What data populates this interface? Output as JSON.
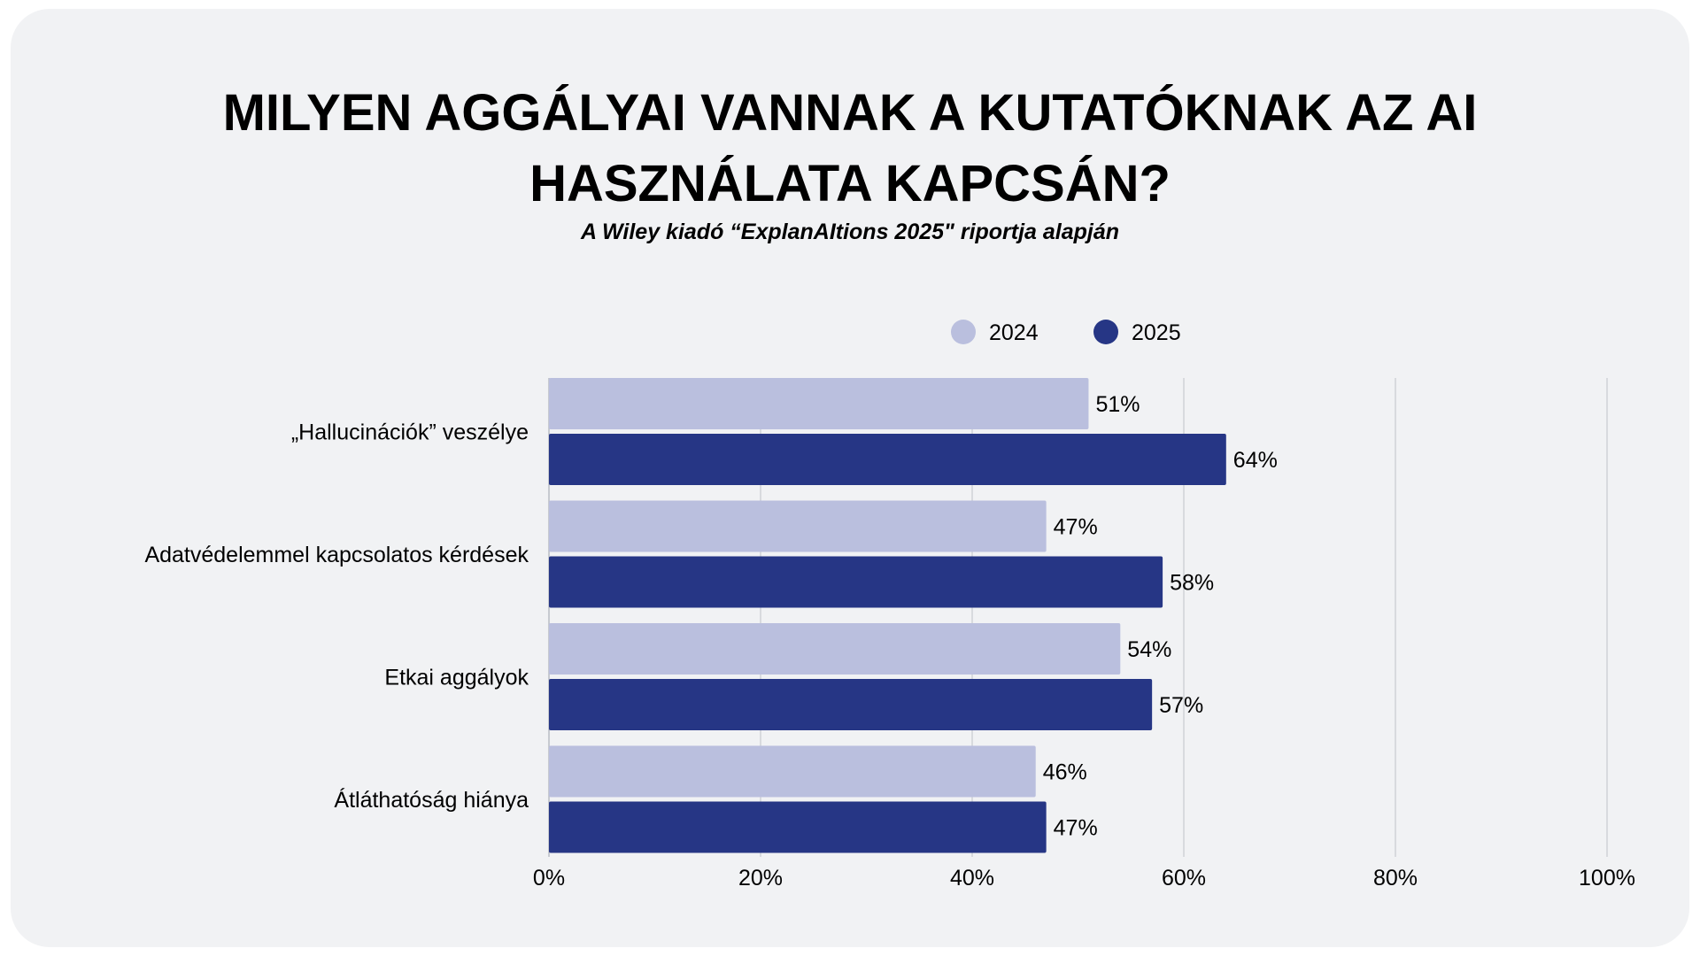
{
  "chart_data": {
    "type": "bar",
    "orientation": "horizontal",
    "title": "MILYEN AGGÁLYAI VANNAK A KUTATÓKNAK AZ AI HASZNÁLATA KAPCSÁN?",
    "title_lines": [
      "MILYEN AGGÁLYAI VANNAK A KUTATÓKNAK AZ AI",
      "HASZNÁLATA KAPCSÁN?"
    ],
    "subtitle": "A Wiley kiadó “ExplanAItions 2025\" riportja alapján",
    "categories": [
      "„Hallucinációk” veszélye",
      "Adatvédelemmel kapcsolatos kérdések",
      "Etkai aggályok",
      "Átláthatóság hiánya"
    ],
    "series": [
      {
        "name": "2024",
        "color": "#babfde",
        "values": [
          51,
          47,
          54,
          46
        ]
      },
      {
        "name": "2025",
        "color": "#263685",
        "values": [
          64,
          58,
          57,
          47
        ]
      }
    ],
    "xlim": [
      0,
      100
    ],
    "xticks": [
      "0%",
      "20%",
      "40%",
      "60%",
      "80%",
      "100%"
    ],
    "value_suffix": "%",
    "grid": true,
    "legend_position": "top-right",
    "xlabel": "",
    "ylabel": ""
  }
}
